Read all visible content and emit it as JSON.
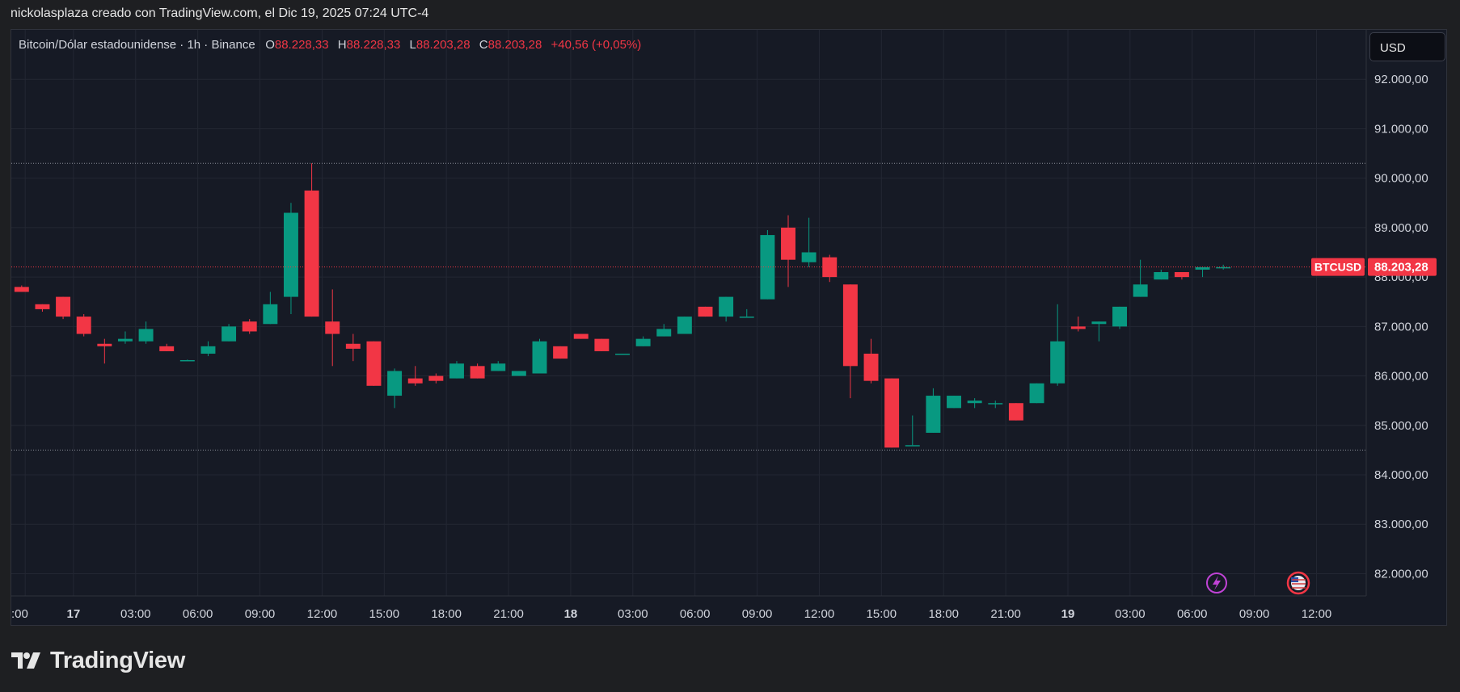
{
  "header": {
    "attribution": "nickolasplaza creado con TradingView.com, el Dic 19, 2025 07:24 UTC-4"
  },
  "legend": {
    "symbol": "Bitcoin/Dólar estadounidense · 1h · Binance",
    "o_label": "O",
    "o_value": "88.228,33",
    "h_label": "H",
    "h_value": "88.228,33",
    "l_label": "L",
    "l_value": "88.203,28",
    "c_label": "C",
    "c_value": "88.203,28",
    "change": "+40,56 (+0,05%)"
  },
  "currency_button": "USD",
  "logo_text": "TradingView",
  "chart_data": {
    "type": "candlestick",
    "symbol": "BTCUSD",
    "last_price": 88203.28,
    "last_price_label": "88.203,28",
    "ylim": [
      81700,
      93000
    ],
    "y_ticks": [
      82000,
      83000,
      84000,
      85000,
      86000,
      87000,
      88000,
      89000,
      90000,
      91000,
      92000
    ],
    "y_tick_labels": [
      "82.000,00",
      "83.000,00",
      "84.000,00",
      "85.000,00",
      "86.000,00",
      "87.000,00",
      "88.000,00",
      "89.000,00",
      "90.000,00",
      "91.000,00",
      "92.000,00"
    ],
    "x_tick_labels": [
      ":00",
      "17",
      "03:00",
      "06:00",
      "09:00",
      "12:00",
      "15:00",
      "18:00",
      "21:00",
      "18",
      "03:00",
      "06:00",
      "09:00",
      "12:00",
      "15:00",
      "18:00",
      "21:00",
      "19",
      "03:00",
      "06:00",
      "09:00",
      "12:00"
    ],
    "x_tick_hours": [
      -0.33,
      2,
      5,
      8,
      11,
      14,
      17,
      20,
      23,
      26,
      29,
      32,
      35,
      38,
      41,
      44,
      47,
      50,
      53,
      56,
      59,
      62
    ],
    "bold_ticks": [
      "17",
      "18",
      "19"
    ],
    "hour_range": [
      -1,
      64.4
    ],
    "reference_lines": [
      90300,
      84500
    ],
    "colors": {
      "up": "#089981",
      "down": "#f23645",
      "background": "#161a25",
      "grid": "#232733",
      "text": "#d1d4dc"
    },
    "candles": [
      [
        -0.5,
        87800,
        87830,
        87700,
        87700
      ],
      [
        0.5,
        87450,
        87450,
        87300,
        87350
      ],
      [
        1.5,
        87600,
        87600,
        87150,
        87200
      ],
      [
        2.5,
        87200,
        87250,
        86800,
        86850
      ],
      [
        3.5,
        86650,
        86750,
        86250,
        86600
      ],
      [
        4.5,
        86700,
        86900,
        86650,
        86750
      ],
      [
        5.5,
        86700,
        87100,
        86650,
        86950
      ],
      [
        6.5,
        86600,
        86650,
        86500,
        86500
      ],
      [
        7.5,
        86320,
        86330,
        86300,
        86320
      ],
      [
        8.5,
        86450,
        86700,
        86400,
        86600
      ],
      [
        9.5,
        86700,
        87050,
        86700,
        87000
      ],
      [
        10.5,
        87100,
        87150,
        86850,
        86900
      ],
      [
        11.5,
        87050,
        87700,
        87050,
        87450
      ],
      [
        12.5,
        87600,
        89500,
        87250,
        89300
      ],
      [
        13.5,
        89750,
        90300,
        87200,
        87200
      ],
      [
        14.5,
        87100,
        87750,
        86200,
        86850
      ],
      [
        15.5,
        86650,
        86850,
        86300,
        86550
      ],
      [
        16.5,
        86700,
        86700,
        85800,
        85800
      ],
      [
        17.5,
        85600,
        86150,
        85350,
        86100
      ],
      [
        18.5,
        85950,
        86200,
        85800,
        85850
      ],
      [
        19.5,
        86000,
        86050,
        85850,
        85900
      ],
      [
        20.5,
        85950,
        86300,
        85950,
        86250
      ],
      [
        21.5,
        86200,
        86250,
        85950,
        85950
      ],
      [
        22.5,
        86100,
        86300,
        86100,
        86250
      ],
      [
        23.5,
        86000,
        86100,
        86000,
        86100
      ],
      [
        24.5,
        86050,
        86750,
        86050,
        86700
      ],
      [
        25.5,
        86600,
        86600,
        86350,
        86350
      ],
      [
        26.5,
        86850,
        86850,
        86750,
        86750
      ],
      [
        27.5,
        86750,
        86750,
        86500,
        86500
      ],
      [
        28.5,
        86450,
        86450,
        86450,
        86450
      ],
      [
        29.5,
        86600,
        86800,
        86600,
        86750
      ],
      [
        30.5,
        86800,
        87050,
        86800,
        86950
      ],
      [
        31.5,
        86850,
        87200,
        86850,
        87200
      ],
      [
        32.5,
        87400,
        87400,
        87200,
        87200
      ],
      [
        33.5,
        87200,
        87600,
        87100,
        87600
      ],
      [
        34.5,
        87200,
        87350,
        87200,
        87200
      ],
      [
        35.5,
        87550,
        88950,
        87550,
        88850
      ],
      [
        36.5,
        89000,
        89250,
        87800,
        88350
      ],
      [
        37.5,
        88300,
        89200,
        88200,
        88500
      ],
      [
        38.5,
        88400,
        88450,
        87900,
        88000
      ],
      [
        39.5,
        87850,
        87850,
        85550,
        86200
      ],
      [
        40.5,
        86450,
        86750,
        85850,
        85900
      ],
      [
        41.5,
        85950,
        85950,
        84550,
        84550
      ],
      [
        42.5,
        84600,
        85200,
        84600,
        84600
      ],
      [
        43.5,
        84850,
        85750,
        84850,
        85600
      ],
      [
        44.5,
        85350,
        85600,
        85350,
        85600
      ],
      [
        45.5,
        85450,
        85550,
        85350,
        85500
      ],
      [
        46.5,
        85450,
        85500,
        85350,
        85450
      ],
      [
        47.5,
        85450,
        85450,
        85100,
        85100
      ],
      [
        48.5,
        85450,
        85850,
        85450,
        85850
      ],
      [
        49.5,
        85850,
        87450,
        85800,
        86700
      ],
      [
        50.5,
        87000,
        87200,
        86900,
        86950
      ],
      [
        51.5,
        87050,
        87100,
        86700,
        87100
      ],
      [
        52.5,
        87000,
        87400,
        86950,
        87400
      ],
      [
        53.5,
        87600,
        88350,
        87600,
        87850
      ],
      [
        54.5,
        87950,
        88150,
        87950,
        88100
      ],
      [
        55.5,
        88100,
        88100,
        87950,
        88000
      ],
      [
        56.5,
        88150,
        88200,
        88000,
        88200
      ],
      [
        57.5,
        88200,
        88250,
        88150,
        88200
      ]
    ]
  }
}
